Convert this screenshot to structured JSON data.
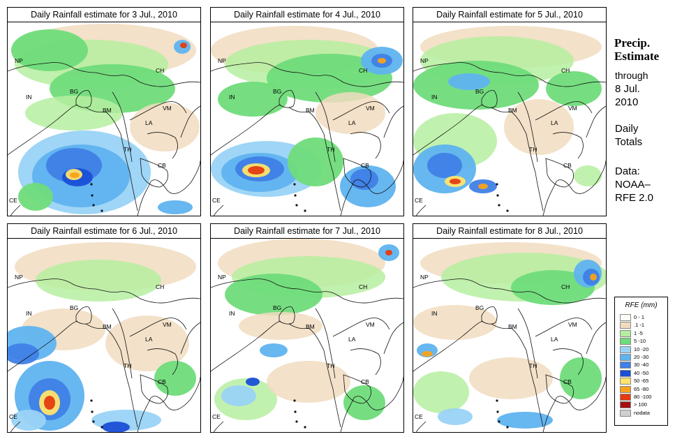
{
  "panels": [
    {
      "title": "Daily Rainfall estimate for  3 Jul., 2010"
    },
    {
      "title": "Daily Rainfall estimate for  4 Jul., 2010"
    },
    {
      "title": "Daily Rainfall estimate for  5 Jul., 2010"
    },
    {
      "title": "Daily Rainfall estimate for  6 Jul., 2010"
    },
    {
      "title": "Daily Rainfall estimate for  7 Jul., 2010"
    },
    {
      "title": "Daily Rainfall estimate for  8 Jul., 2010"
    }
  ],
  "country_labels": {
    "np": "NP",
    "ch": "CH",
    "in": "IN",
    "bg": "BG",
    "bm": "BM",
    "vm": "VM",
    "la": "LA",
    "th": "TH",
    "cb": "CB",
    "ce": "CE"
  },
  "sidebar": {
    "heading_line1": "Precip.",
    "heading_line2": "Estimate",
    "through": "through",
    "date_line1": "8 Jul.",
    "date_line2": "2010",
    "daily_line1": "Daily",
    "daily_line2": "Totals",
    "data_line1": "Data:",
    "data_line2": "NOAA–",
    "data_line3": "RFE 2.0"
  },
  "legend": {
    "title": "RFE (mm)",
    "items": [
      {
        "label": "0 - 1",
        "color": "#fdfdf8"
      },
      {
        "label": ".1 -1",
        "color": "#f1dcbf"
      },
      {
        "label": "1 -5",
        "color": "#b6eea0"
      },
      {
        "label": "5 -10",
        "color": "#6fdc7a"
      },
      {
        "label": "10 -20",
        "color": "#9ad3f5"
      },
      {
        "label": "20 -30",
        "color": "#5fb3ef"
      },
      {
        "label": "30 -40",
        "color": "#3f7fe6"
      },
      {
        "label": "40 -50",
        "color": "#1a4fd6"
      },
      {
        "label": "50 -65",
        "color": "#ffe36b"
      },
      {
        "label": "65 -80",
        "color": "#f7a21a"
      },
      {
        "label": "80 -100",
        "color": "#e43b10"
      },
      {
        "label": "> 100",
        "color": "#a40f0f"
      },
      {
        "label": "nodata",
        "color": "#cfcfcf"
      }
    ]
  }
}
